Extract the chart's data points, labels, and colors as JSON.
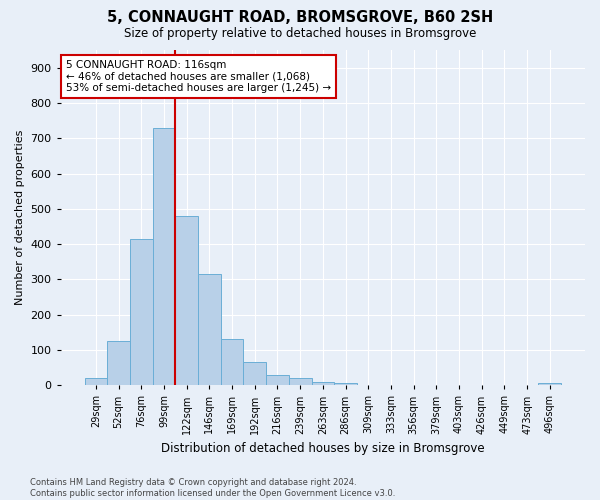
{
  "title": "5, CONNAUGHT ROAD, BROMSGROVE, B60 2SH",
  "subtitle": "Size of property relative to detached houses in Bromsgrove",
  "xlabel": "Distribution of detached houses by size in Bromsgrove",
  "ylabel": "Number of detached properties",
  "bar_color": "#b8d0e8",
  "bar_edge_color": "#6aaed6",
  "background_color": "#e8eff8",
  "grid_color": "#ffffff",
  "categories": [
    "29sqm",
    "52sqm",
    "76sqm",
    "99sqm",
    "122sqm",
    "146sqm",
    "169sqm",
    "192sqm",
    "216sqm",
    "239sqm",
    "263sqm",
    "286sqm",
    "309sqm",
    "333sqm",
    "356sqm",
    "379sqm",
    "403sqm",
    "426sqm",
    "449sqm",
    "473sqm",
    "496sqm"
  ],
  "values": [
    20,
    125,
    415,
    730,
    480,
    315,
    130,
    65,
    28,
    20,
    8,
    5,
    0,
    0,
    0,
    0,
    0,
    0,
    0,
    0,
    7
  ],
  "ylim": [
    0,
    950
  ],
  "yticks": [
    0,
    100,
    200,
    300,
    400,
    500,
    600,
    700,
    800,
    900
  ],
  "vline_bar_index": 4,
  "vline_color": "#cc0000",
  "annotation_text": "5 CONNAUGHT ROAD: 116sqm\n← 46% of detached houses are smaller (1,068)\n53% of semi-detached houses are larger (1,245) →",
  "annotation_box_color": "#ffffff",
  "annotation_box_edge_color": "#cc0000",
  "footer_line1": "Contains HM Land Registry data © Crown copyright and database right 2024.",
  "footer_line2": "Contains public sector information licensed under the Open Government Licence v3.0."
}
